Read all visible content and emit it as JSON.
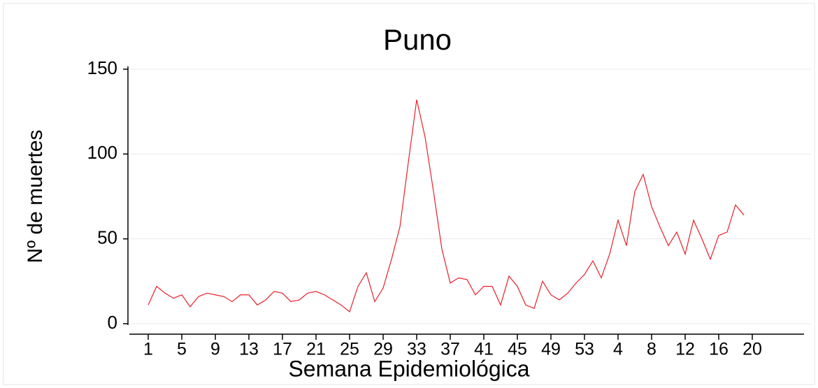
{
  "chart_data": {
    "type": "line",
    "title": "Puno",
    "xlabel": "Semana Epidemiológica",
    "ylabel": "Nº de muertes",
    "categories": [
      "1",
      null,
      null,
      null,
      "5",
      null,
      null,
      null,
      "9",
      null,
      null,
      null,
      "13",
      null,
      null,
      null,
      "17",
      null,
      null,
      null,
      "21",
      null,
      null,
      null,
      "25",
      null,
      null,
      null,
      "29",
      null,
      null,
      null,
      "33",
      null,
      null,
      null,
      "37",
      null,
      null,
      null,
      "41",
      null,
      null,
      null,
      "45",
      null,
      null,
      null,
      "49",
      null,
      null,
      null,
      "53",
      null,
      null,
      null,
      "4",
      null,
      null,
      null,
      "8",
      null,
      null,
      null,
      "12",
      null,
      null,
      null,
      "16",
      null,
      null,
      null,
      "20"
    ],
    "series": [
      {
        "name": "Puno",
        "color": "#e8202a",
        "values": [
          11,
          22,
          18,
          15,
          17,
          10,
          16,
          18,
          17,
          16,
          13,
          17,
          17,
          11,
          14,
          19,
          18,
          13,
          14,
          18,
          19,
          17,
          14,
          11,
          7,
          22,
          30,
          13,
          21,
          38,
          57,
          95,
          132,
          110,
          78,
          44,
          24,
          27,
          26,
          17,
          22,
          22,
          11,
          28,
          22,
          11,
          9,
          25,
          17,
          14,
          18,
          24,
          29,
          37,
          27,
          41,
          61,
          46,
          78,
          88,
          69,
          57,
          46,
          54,
          41,
          61,
          50,
          38,
          52,
          54,
          70,
          64,
          null
        ]
      }
    ],
    "ylim": [
      0,
      150
    ],
    "yticks": [
      0,
      50,
      100,
      150
    ],
    "grid": true
  }
}
